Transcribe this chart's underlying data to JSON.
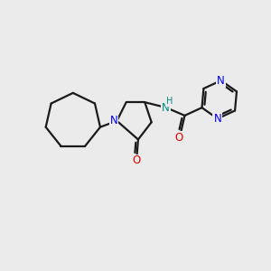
{
  "background_color": "#ebebeb",
  "bond_color": "#1a1a1a",
  "N_color": "#0000ee",
  "O_color": "#dd0000",
  "NH_color": "#008888",
  "line_width": 1.6,
  "figsize": [
    3.0,
    3.0
  ],
  "dpi": 100,
  "xlim": [
    0,
    10
  ],
  "ylim": [
    0,
    10
  ]
}
